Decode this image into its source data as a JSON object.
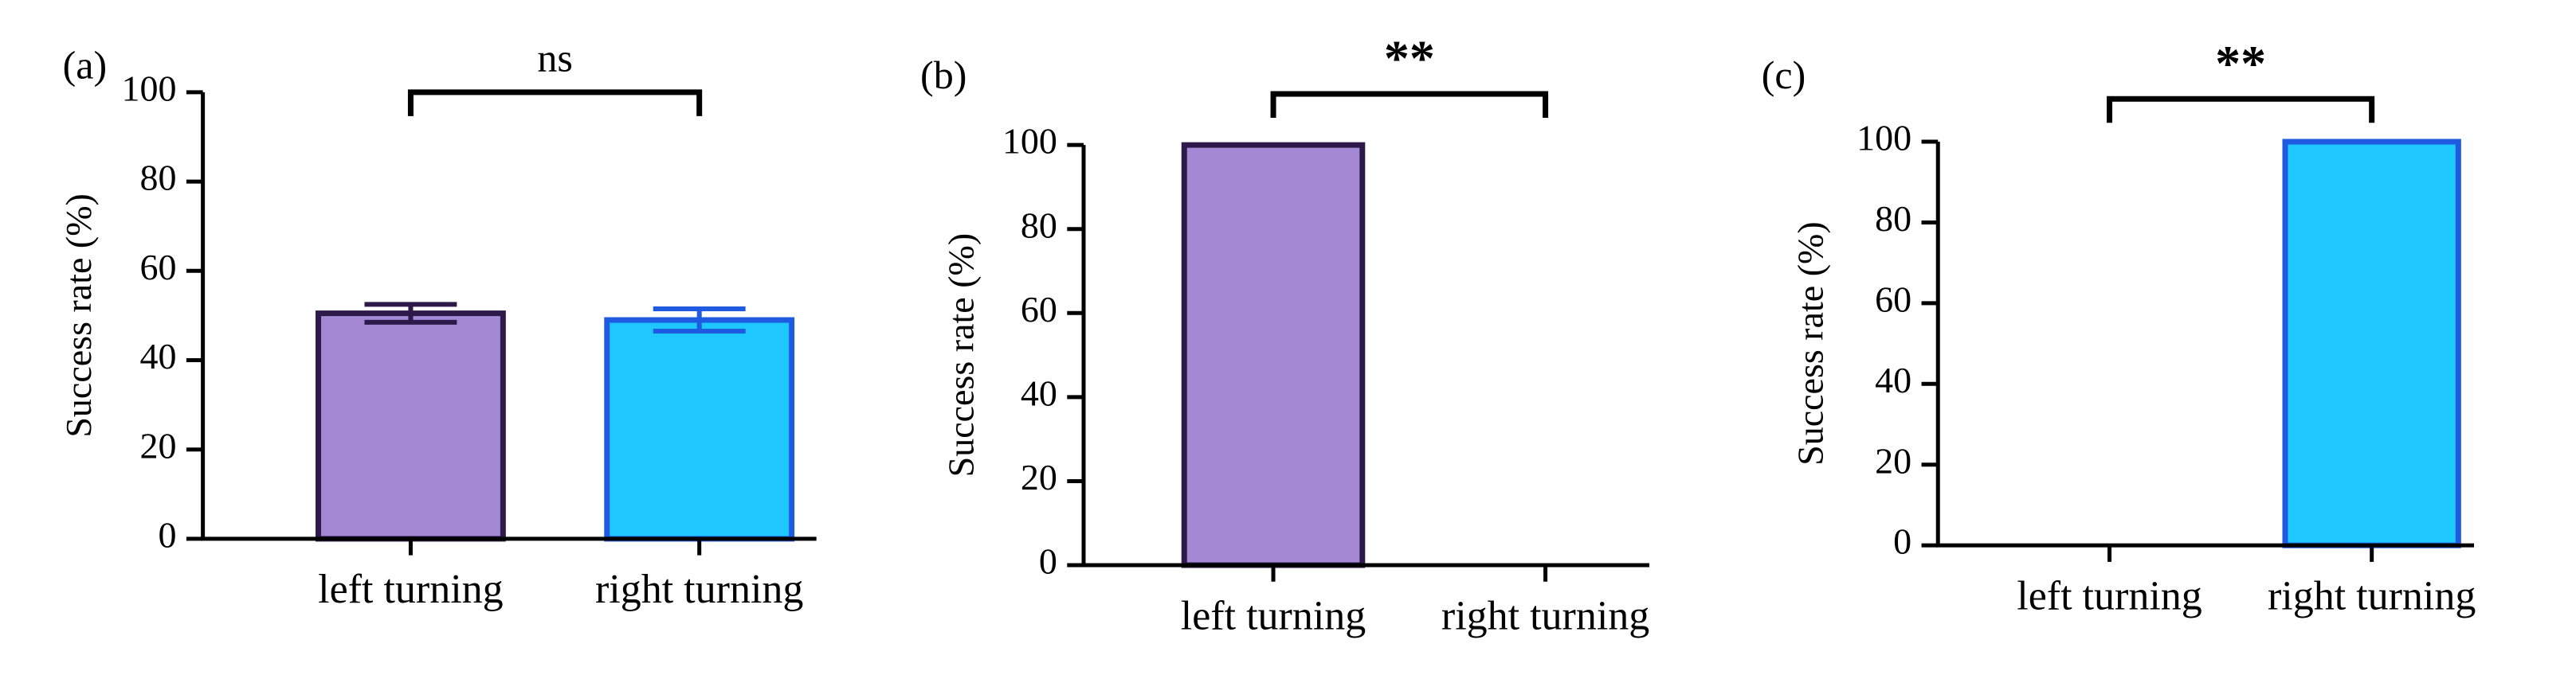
{
  "chart_data": [
    {
      "type": "bar",
      "panel_label": "(a)",
      "annotation": "ns",
      "y_label": "Success rate (%)",
      "categories": [
        "left turning",
        "right turning"
      ],
      "values": [
        50.5,
        49
      ],
      "errors": [
        2,
        2.5
      ],
      "colors": [
        "#a389d4",
        "#1ec8ff"
      ],
      "edge_colors": [
        "#2d1a4a",
        "#1f5be0"
      ],
      "ylim": [
        0,
        100
      ],
      "yticks": [
        0,
        20,
        40,
        60,
        80,
        100
      ]
    },
    {
      "type": "bar",
      "panel_label": "(b)",
      "annotation": "**",
      "y_label": "Success rate (%)",
      "categories": [
        "left turning",
        "right turning"
      ],
      "values": [
        100,
        0
      ],
      "colors": [
        "#a389d4",
        "#1ec8ff"
      ],
      "edge_colors": [
        "#2d1a4a",
        "#1f5be0"
      ],
      "ylim": [
        0,
        100
      ],
      "yticks": [
        0,
        20,
        40,
        60,
        80,
        100
      ]
    },
    {
      "type": "bar",
      "panel_label": "(c)",
      "annotation": "**",
      "y_label": "Success rate (%)",
      "categories": [
        "left turning",
        "right turning"
      ],
      "values": [
        0,
        100
      ],
      "colors": [
        "#a389d4",
        "#1ec8ff"
      ],
      "edge_colors": [
        "#2d1a4a",
        "#1f5be0"
      ],
      "ylim": [
        0,
        100
      ],
      "yticks": [
        0,
        20,
        40,
        60,
        80,
        100
      ]
    }
  ]
}
